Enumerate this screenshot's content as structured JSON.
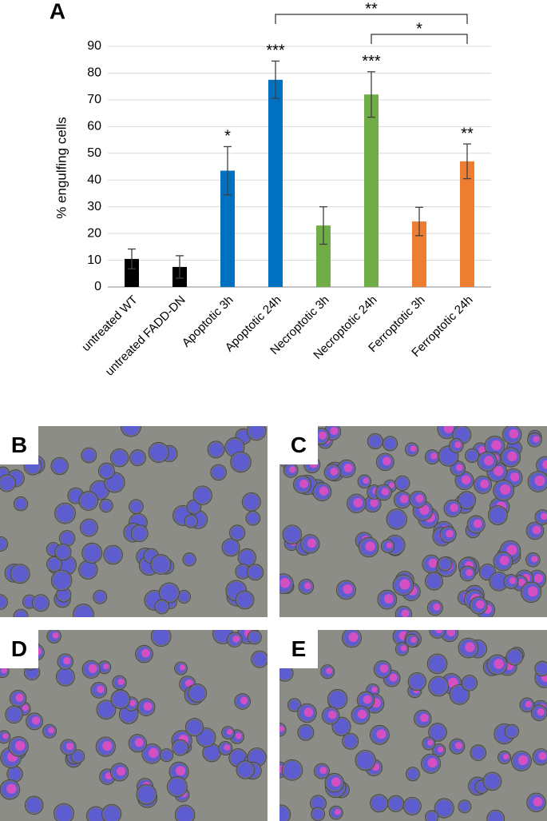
{
  "figure_label": "A",
  "panels": [
    "B",
    "C",
    "D",
    "E"
  ],
  "chart_data": {
    "type": "bar",
    "y_label": "% engulfing cells",
    "categories": [
      "untreated WT",
      "untreated FADD-DN",
      "Apoptotic 3h",
      "Apoptotic 24h",
      "Necroptotic 3h",
      "Necroptotic 24h",
      "Ferroptotic 3h",
      "Ferroptotic 24h"
    ],
    "values": [
      10.5,
      7.5,
      43.5,
      77.5,
      23,
      72,
      24.5,
      47
    ],
    "errors": [
      3.7,
      4.2,
      9,
      7,
      7,
      8.5,
      5.3,
      6.5
    ],
    "colors": [
      "#000000",
      "#000000",
      "#0070c0",
      "#0070c0",
      "#70ad47",
      "#70ad47",
      "#ed7d31",
      "#ed7d31"
    ],
    "significance": [
      null,
      null,
      "*",
      "***",
      null,
      "***",
      null,
      "**"
    ],
    "comparisons": [
      {
        "from": "Apoptotic 24h",
        "to": "Ferroptotic 24h",
        "label": "**"
      },
      {
        "from": "Necroptotic 24h",
        "to": "Ferroptotic 24h",
        "label": "*"
      }
    ],
    "ylim": [
      0,
      90
    ],
    "yticks": [
      0,
      10,
      20,
      30,
      40,
      50,
      60,
      70,
      80,
      90
    ],
    "grid": true
  }
}
